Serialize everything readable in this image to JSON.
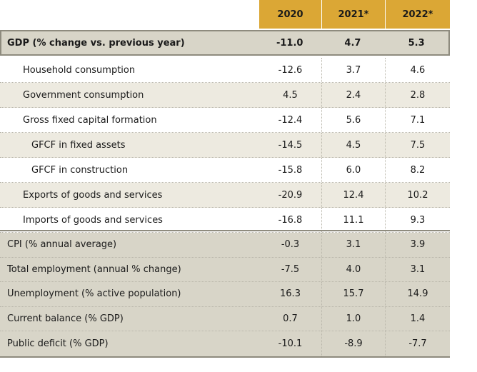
{
  "header": {
    "years": [
      "2020",
      "2021*",
      "2022*"
    ]
  },
  "gdp": {
    "label": "GDP (% change vs. previous year)",
    "values": [
      "-11.0",
      "4.7",
      "5.3"
    ]
  },
  "components": [
    {
      "label": "Household consumption",
      "values": [
        "-12.6",
        "3.7",
        "4.6"
      ]
    },
    {
      "label": "Government consumption",
      "values": [
        "4.5",
        "2.4",
        "2.8"
      ]
    },
    {
      "label": "Gross fixed capital formation",
      "values": [
        "-12.4",
        "5.6",
        "7.1"
      ]
    },
    {
      "label": "GFCF in fixed assets",
      "values": [
        "-14.5",
        "4.5",
        "7.5"
      ]
    },
    {
      "label": "GFCF in construction",
      "values": [
        "-15.8",
        "6.0",
        "8.2"
      ]
    },
    {
      "label": "Exports of goods and services",
      "values": [
        "-20.9",
        "12.4",
        "10.2"
      ]
    },
    {
      "label": "Imports of goods and services",
      "values": [
        "-16.8",
        "11.1",
        "9.3"
      ]
    }
  ],
  "indicators": [
    {
      "label": "CPI (% annual average)",
      "values": [
        "-0.3",
        "3.1",
        "3.9"
      ]
    },
    {
      "label": "Total employment (annual % change)",
      "values": [
        "-7.5",
        "4.0",
        "3.1"
      ]
    },
    {
      "label": "Unemployment (% active population)",
      "values": [
        "16.3",
        "15.7",
        "14.9"
      ]
    },
    {
      "label": "Current balance (% GDP)",
      "values": [
        "0.7",
        "1.0",
        "1.4"
      ]
    },
    {
      "label": "Public deficit (% GDP)",
      "values": [
        "-10.1",
        "-8.9",
        "-7.7"
      ]
    }
  ],
  "colors": {
    "header_bg": "#dba735",
    "band_bg": "#d8d5c8",
    "alt_row_bg": "#edeae0",
    "border": "#8e8b7e"
  }
}
